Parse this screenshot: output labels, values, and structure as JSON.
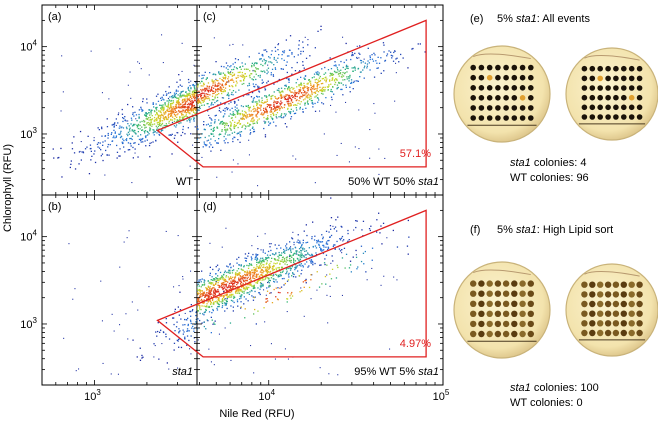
{
  "chart_data": {
    "type": "scatter",
    "style": "density-colored flow cytometry scatter (blue low density to red high density)",
    "shared_axes": {
      "xlabel": "Nile Red (RFU)",
      "ylabel": "Chlorophyll (RFU)",
      "xscale": "log",
      "yscale": "log",
      "xlim": [
        500,
        100000
      ],
      "ylim": [
        200,
        30000
      ],
      "x_ticks": [
        {
          "value": 1000,
          "label": "10",
          "exp": "3"
        },
        {
          "value": 10000,
          "label": "10",
          "exp": "4"
        },
        {
          "value": 100000,
          "label": "10",
          "exp": "5"
        }
      ],
      "y_ticks": [
        {
          "value": 1000,
          "label": "10",
          "exp": "3"
        },
        {
          "value": 10000,
          "label": "10",
          "exp": "4"
        }
      ]
    },
    "panels": [
      {
        "id": "a",
        "letter": "(a)",
        "sample": "WT",
        "populations": [
          {
            "center": [
              4000,
              2500
            ],
            "spread": [
              0.28,
              0.2
            ],
            "slope": 0.85,
            "count": 1800
          }
        ]
      },
      {
        "id": "b",
        "letter": "(b)",
        "sample": "sta1",
        "populations": [
          {
            "center": [
              11000,
              2600
            ],
            "spread": [
              0.28,
              0.2
            ],
            "slope": 0.85,
            "count": 1800
          }
        ]
      },
      {
        "id": "c",
        "letter": "(c)",
        "sample": "50% WT 50% sta1",
        "populations": [
          {
            "center": [
              4000,
              2900
            ],
            "spread": [
              0.28,
              0.18
            ],
            "slope": 0.85,
            "count": 900
          },
          {
            "center": [
              12000,
              2400
            ],
            "spread": [
              0.3,
              0.18
            ],
            "slope": 0.85,
            "count": 1000
          }
        ],
        "gate": {
          "polygon": [
            [
              2300,
              1100
            ],
            [
              80000,
              20000
            ],
            [
              80000,
              420
            ],
            [
              4200,
              420
            ]
          ],
          "percent": "57.1%"
        }
      },
      {
        "id": "d",
        "letter": "(d)",
        "sample": "95% WT 5% sta1",
        "populations": [
          {
            "center": [
              5500,
              2600
            ],
            "spread": [
              0.32,
              0.2
            ],
            "slope": 0.85,
            "count": 1800
          },
          {
            "center": [
              12000,
              2400
            ],
            "spread": [
              0.3,
              0.18
            ],
            "slope": 0.85,
            "count": 110
          }
        ],
        "gate": {
          "polygon": [
            [
              2300,
              1100
            ],
            [
              80000,
              20000
            ],
            [
              80000,
              420
            ],
            [
              4200,
              420
            ]
          ],
          "percent": "4.97%"
        }
      }
    ],
    "plates": [
      {
        "id": "e",
        "letter": "(e)",
        "title_pre": "5% ",
        "title_italic": "sta1",
        "title_post": ": All events",
        "sta1_colonies": 4,
        "wt_colonies": 96
      },
      {
        "id": "f",
        "letter": "(f)",
        "title_pre": "5% ",
        "title_italic": "sta1",
        "title_post": ":  High Lipid sort",
        "sta1_colonies": 100,
        "wt_colonies": 0
      }
    ],
    "colony_labels": {
      "sta1": "sta1",
      "sta1_suffix": " colonies: ",
      "wt": "WT colonies: "
    }
  }
}
